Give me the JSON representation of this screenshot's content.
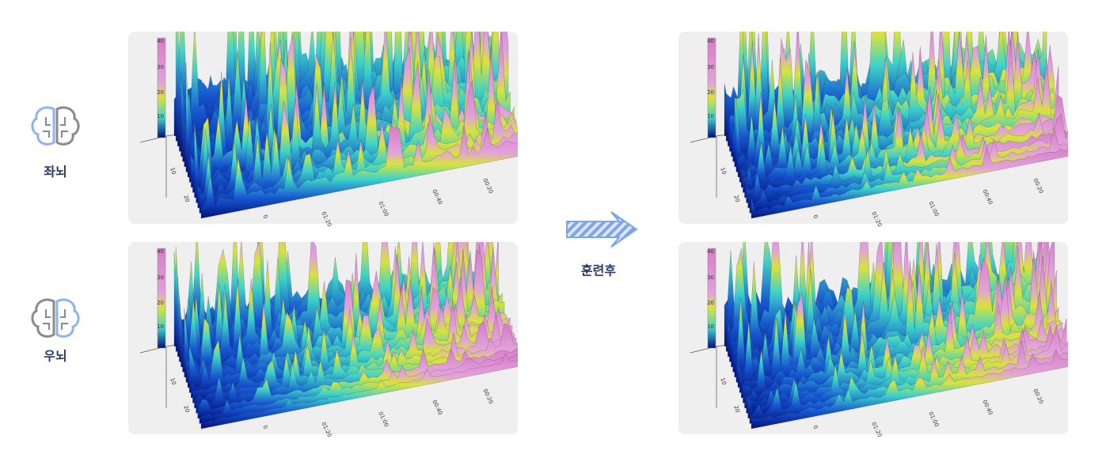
{
  "rows": [
    {
      "label": "좌뇌"
    },
    {
      "label": "우뇌"
    }
  ],
  "arrow_label": "훈련후",
  "panel_axes": {
    "colorbar": [
      10,
      20,
      30,
      40
    ],
    "depth": [
      10,
      20
    ],
    "time": [
      "0",
      "01:20",
      "01:00",
      "00:40",
      "00:20"
    ]
  }
}
